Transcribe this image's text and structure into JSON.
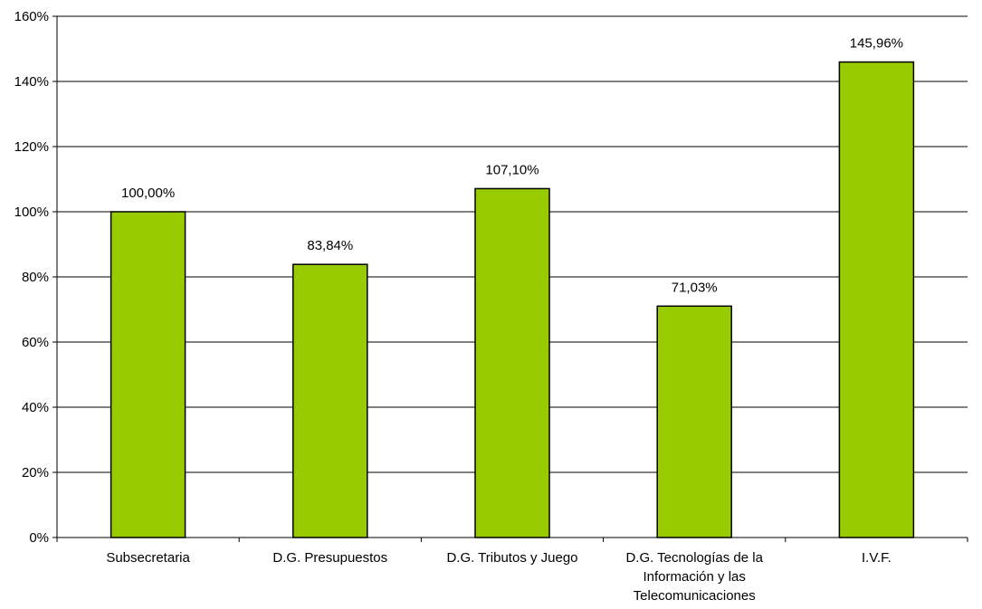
{
  "chart_data": {
    "type": "bar",
    "title": "",
    "xlabel": "",
    "ylabel": "",
    "categories": [
      [
        "Subsecretaria"
      ],
      [
        "D.G. Presupuestos"
      ],
      [
        "D.G. Tributos y Juego"
      ],
      [
        "D.G. Tecnologías de la",
        "Información y las",
        "Telecomunicaciones"
      ],
      [
        "I.V.F."
      ]
    ],
    "values": [
      100.0,
      83.84,
      107.1,
      71.03,
      145.96
    ],
    "data_labels": [
      "100,00%",
      "83,84%",
      "107,10%",
      "71,03%",
      "145,96%"
    ],
    "ylim": [
      0,
      160
    ],
    "y_ticks": [
      0,
      20,
      40,
      60,
      80,
      100,
      120,
      140,
      160
    ],
    "y_tick_labels": [
      "0%",
      "20%",
      "40%",
      "60%",
      "80%",
      "100%",
      "120%",
      "140%",
      "160%"
    ],
    "grid": true,
    "legend": "none",
    "bar_color": "#99cc00",
    "bar_edge_color": "#000000"
  }
}
